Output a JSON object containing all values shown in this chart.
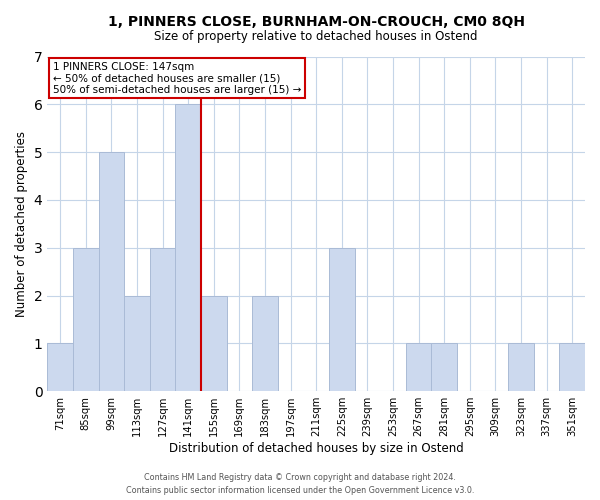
{
  "title_line1": "1, PINNERS CLOSE, BURNHAM-ON-CROUCH, CM0 8QH",
  "title_line2": "Size of property relative to detached houses in Ostend",
  "xlabel": "Distribution of detached houses by size in Ostend",
  "ylabel": "Number of detached properties",
  "bar_labels": [
    "71sqm",
    "85sqm",
    "99sqm",
    "113sqm",
    "127sqm",
    "141sqm",
    "155sqm",
    "169sqm",
    "183sqm",
    "197sqm",
    "211sqm",
    "225sqm",
    "239sqm",
    "253sqm",
    "267sqm",
    "281sqm",
    "295sqm",
    "309sqm",
    "323sqm",
    "337sqm",
    "351sqm"
  ],
  "bar_values": [
    1,
    3,
    5,
    2,
    3,
    6,
    2,
    0,
    2,
    0,
    0,
    3,
    0,
    0,
    1,
    1,
    0,
    0,
    1,
    0,
    1
  ],
  "bar_color": "#ccd9ee",
  "bar_edge_color": "#aabbd6",
  "grid_color": "#c5d5e8",
  "ylim": [
    0,
    7
  ],
  "yticks": [
    0,
    1,
    2,
    3,
    4,
    5,
    6,
    7
  ],
  "annotation_line1": "1 PINNERS CLOSE: 147sqm",
  "annotation_line2": "← 50% of detached houses are smaller (15)",
  "annotation_line3": "50% of semi-detached houses are larger (15) →",
  "annotation_box_color": "#ffffff",
  "annotation_box_edge_color": "#cc0000",
  "vline_x": 5.5,
  "vline_color": "#cc0000",
  "footer_line1": "Contains HM Land Registry data © Crown copyright and database right 2024.",
  "footer_line2": "Contains public sector information licensed under the Open Government Licence v3.0."
}
